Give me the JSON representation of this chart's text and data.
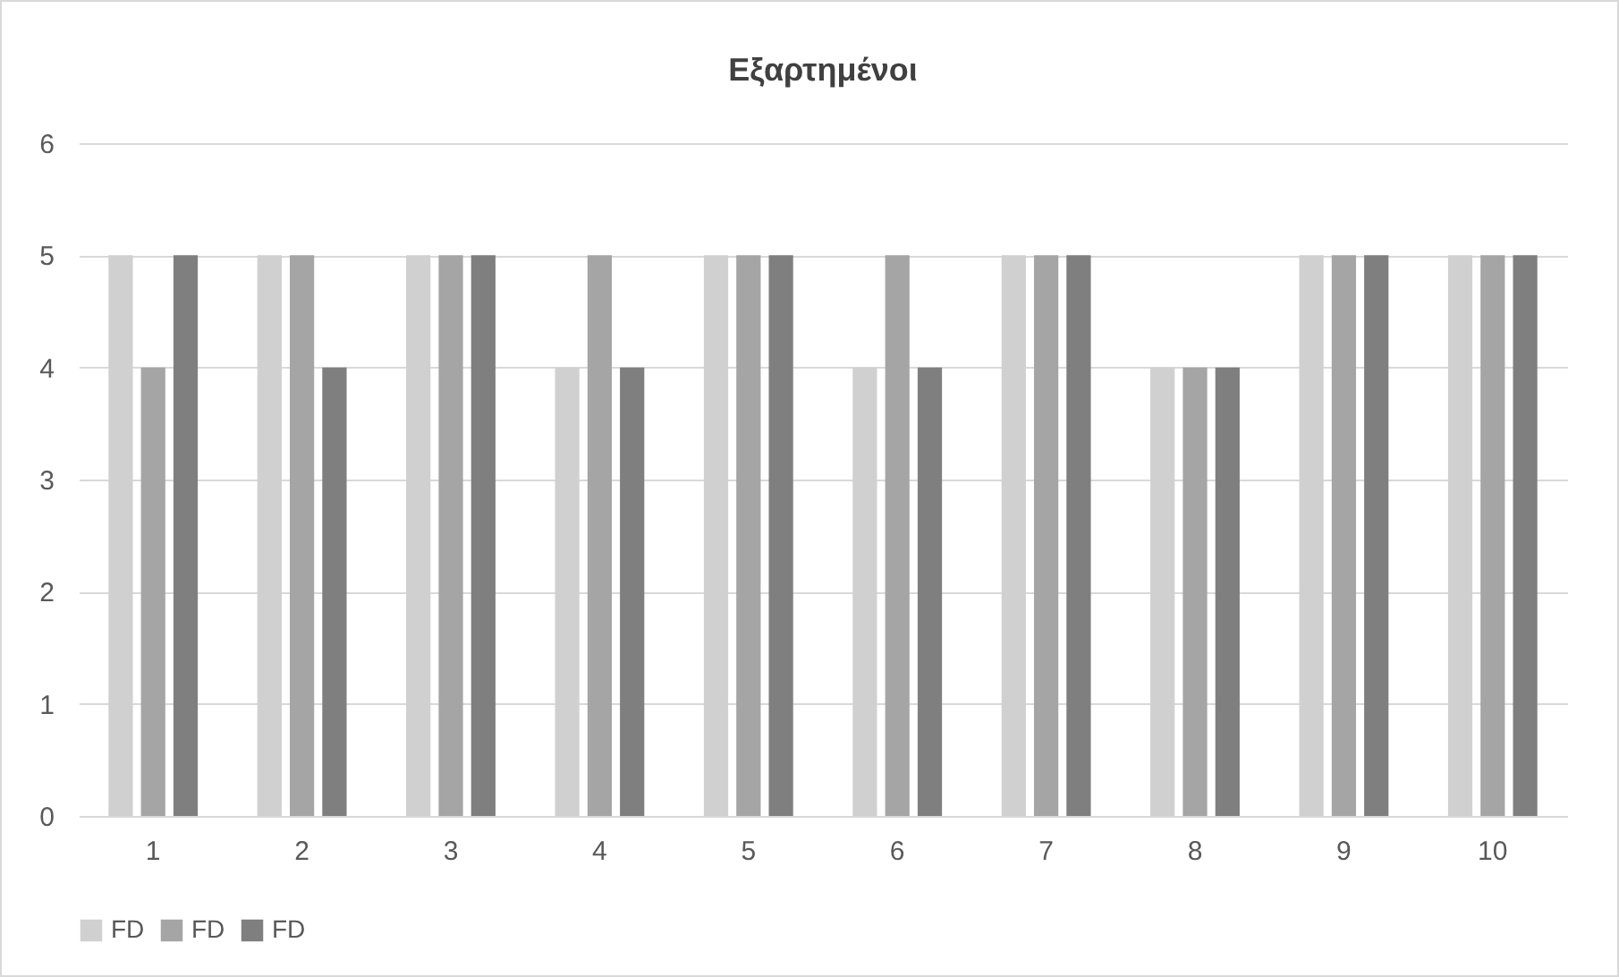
{
  "chart_data": {
    "type": "bar",
    "title": "Εξαρτημένοι",
    "categories": [
      "1",
      "2",
      "3",
      "4",
      "5",
      "6",
      "7",
      "8",
      "9",
      "10"
    ],
    "series": [
      {
        "name": "FD",
        "color": "#d0d0d0",
        "values": [
          5,
          5,
          5,
          4,
          5,
          4,
          5,
          4,
          5,
          5
        ]
      },
      {
        "name": "FD",
        "color": "#a5a5a5",
        "values": [
          4,
          5,
          5,
          5,
          5,
          5,
          5,
          4,
          5,
          5
        ]
      },
      {
        "name": "FD",
        "color": "#7f7f7f",
        "values": [
          5,
          4,
          5,
          4,
          5,
          4,
          5,
          4,
          5,
          5
        ]
      }
    ],
    "ylim": [
      0,
      6
    ],
    "yticks": [
      0,
      1,
      2,
      3,
      4,
      5,
      6
    ],
    "grid": "y",
    "legend": "bottom"
  }
}
